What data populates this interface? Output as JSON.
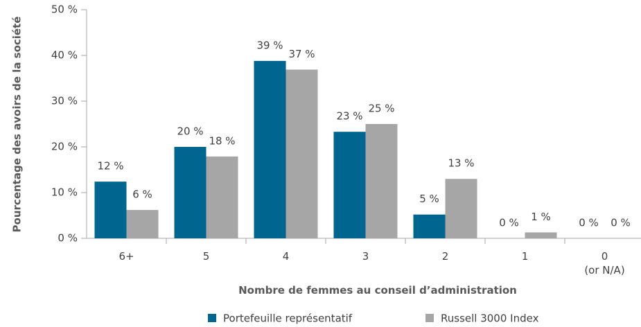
{
  "chart_data": {
    "type": "bar",
    "x_label": "Nombre de femmes au conseil d’administration",
    "y_label": "Pourcentage des avoirs de la société",
    "categories": [
      "6+",
      "5",
      "4",
      "3",
      "2",
      "1",
      "0\n(or N/A)"
    ],
    "series": [
      {
        "name": "Portefeuille représentatif",
        "color": "#00668f",
        "values": [
          12.4,
          20,
          38.8,
          23.3,
          5.2,
          0,
          0
        ],
        "value_labels": [
          "12 %",
          "20 %",
          "39 %",
          "23 %",
          "5 %",
          "0 %",
          "0 %"
        ]
      },
      {
        "name": "Russell 3000 Index",
        "color": "#a6a6a6",
        "values": [
          6.2,
          17.9,
          36.9,
          25,
          13,
          1.3,
          0
        ],
        "value_labels": [
          "6 %",
          "18 %",
          "37 %",
          "25 %",
          "13 %",
          "1 %",
          "0 %"
        ]
      }
    ],
    "ylim": [
      0,
      50
    ],
    "yticks": [
      {
        "value": 0,
        "label": "0 %"
      },
      {
        "value": 10,
        "label": "10 %"
      },
      {
        "value": 20,
        "label": "20 %"
      },
      {
        "value": 30,
        "label": "30 %"
      },
      {
        "value": 40,
        "label": "40 %"
      },
      {
        "value": 50,
        "label": "50 %"
      }
    ],
    "legend": "bottom"
  }
}
